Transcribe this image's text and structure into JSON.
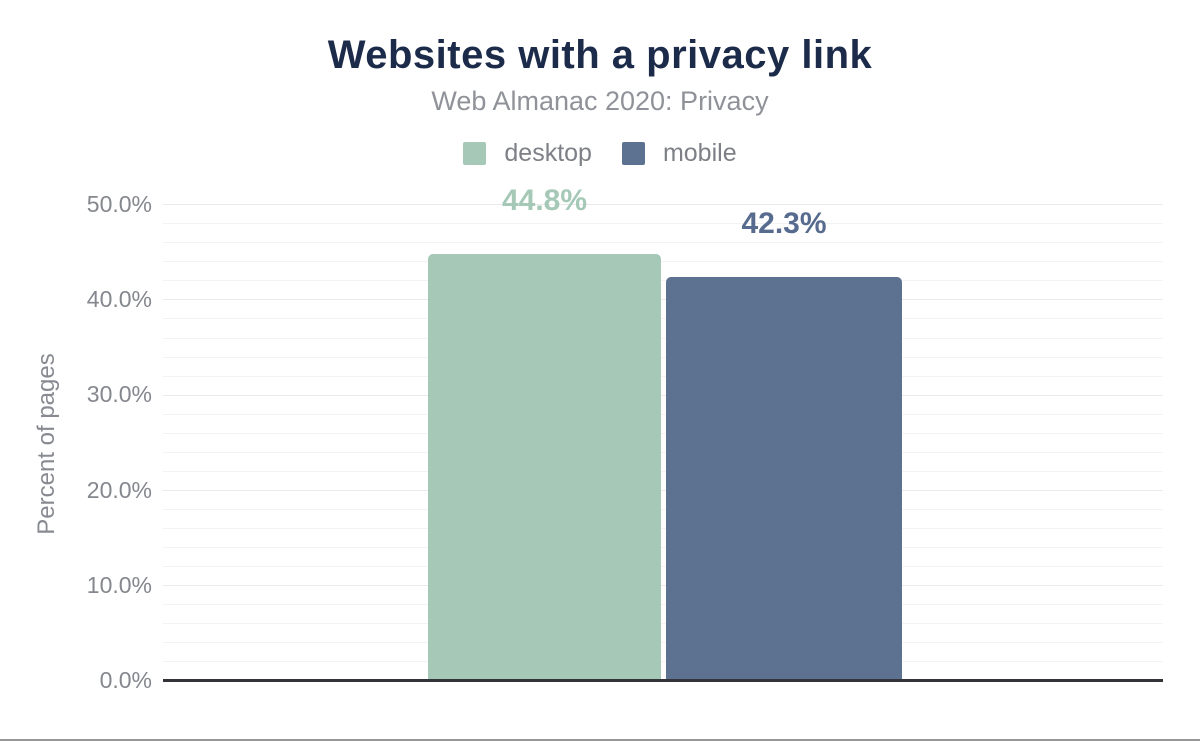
{
  "header": {
    "title": "Websites with a privacy link",
    "subtitle": "Web Almanac 2020: Privacy"
  },
  "legend": {
    "items": [
      {
        "label": "desktop",
        "color": "#a5c8b7"
      },
      {
        "label": "mobile",
        "color": "#5d7190"
      }
    ]
  },
  "chart_data": {
    "type": "bar",
    "title": "Websites with a privacy link",
    "subtitle": "Web Almanac 2020: Privacy",
    "categories": [
      ""
    ],
    "series": [
      {
        "name": "desktop",
        "values": [
          44.8
        ],
        "data_label": "44.8%",
        "color": "#a5c8b7",
        "label_color": "#a5c8b7"
      },
      {
        "name": "mobile",
        "values": [
          42.3
        ],
        "data_label": "42.3%",
        "color": "#5d7190",
        "label_color": "#566b8e"
      }
    ],
    "xlabel": "",
    "ylabel": "Percent of pages",
    "ylim": [
      0,
      50
    ],
    "yticks": [
      {
        "value": 0,
        "label": "0.0%"
      },
      {
        "value": 10,
        "label": "10.0%"
      },
      {
        "value": 20,
        "label": "20.0%"
      },
      {
        "value": 30,
        "label": "30.0%"
      },
      {
        "value": 40,
        "label": "40.0%"
      },
      {
        "value": 50,
        "label": "50.0%"
      }
    ],
    "grid": {
      "show": true,
      "minor_step": 2,
      "major_step": 10
    },
    "legend_position": "top"
  },
  "colors": {
    "title": "#1c2b4a",
    "subtitle_text": "#8f9298",
    "axis_text": "#85878e",
    "axis_line": "#33343a",
    "grid_minor": "#f3f3f3",
    "grid_major": "#eaeaea",
    "page_border": "#979797"
  }
}
